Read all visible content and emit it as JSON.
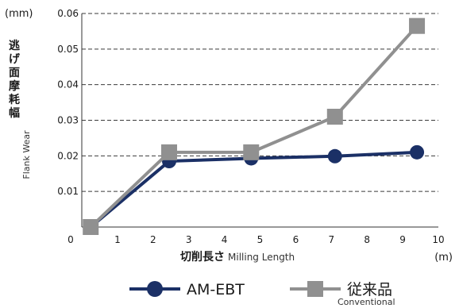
{
  "chart_data": {
    "type": "line",
    "x_unit": "(m)",
    "y_unit": "(mm)",
    "xlabel_jp": "切削長さ",
    "xlabel_en": "Milling Length",
    "ylabel_jp": "逃げ面摩耗幅",
    "ylabel_en": "Flank Wear",
    "xlim": [
      0,
      10
    ],
    "ylim": [
      0,
      0.06
    ],
    "x_ticks": [
      "0",
      "1",
      "2",
      "3",
      "4",
      "5",
      "6",
      "7",
      "8",
      "9",
      "10"
    ],
    "y_ticks": [
      "0.01",
      "0.02",
      "0.03",
      "0.04",
      "0.05",
      "0.06"
    ],
    "grid": "horizontal dashed",
    "legend_position": "bottom",
    "series": [
      {
        "name": "AM-EBT",
        "sub": "",
        "color": "#1b3066",
        "marker": "circle",
        "x": [
          0.25,
          2.45,
          4.75,
          7.1,
          9.4
        ],
        "y": [
          0.0,
          0.0185,
          0.0193,
          0.0199,
          0.021
        ]
      },
      {
        "name": "従来品",
        "sub": "Conventional",
        "color": "#909090",
        "marker": "square",
        "x": [
          0.25,
          2.45,
          4.75,
          7.1,
          9.4
        ],
        "y": [
          0.0,
          0.021,
          0.021,
          0.031,
          0.0565
        ]
      }
    ]
  }
}
